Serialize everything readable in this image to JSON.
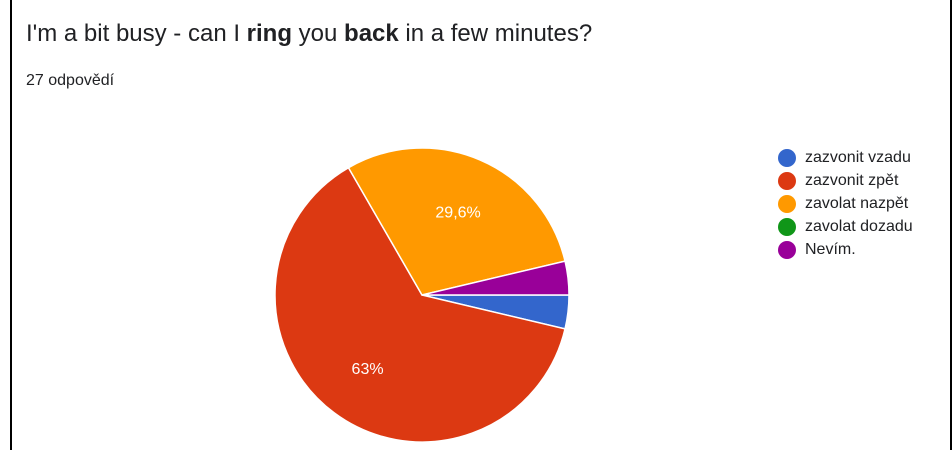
{
  "question": {
    "parts": [
      {
        "text": "I'm a bit busy - can I ",
        "bold": false
      },
      {
        "text": "ring",
        "bold": true
      },
      {
        "text": " you ",
        "bold": false
      },
      {
        "text": "back",
        "bold": true
      },
      {
        "text": " in a few minutes?",
        "bold": false
      }
    ]
  },
  "response_count": "27 odpovědí",
  "chart_data": {
    "type": "pie",
    "title": "I'm a bit busy - can I ring you back in a few minutes?",
    "total_responses": 27,
    "legend_position": "right",
    "slices": [
      {
        "name": "zazvonit vzadu",
        "count": 1,
        "percent": 3.7,
        "label": "",
        "color": "#3366cc"
      },
      {
        "name": "zazvonit zpět",
        "count": 17,
        "percent": 63.0,
        "label": "63%",
        "color": "#dc3912"
      },
      {
        "name": "zavolat nazpět",
        "count": 8,
        "percent": 29.6,
        "label": "29,6%",
        "color": "#ff9900"
      },
      {
        "name": "zavolat dozadu",
        "count": 0,
        "percent": 0.0,
        "label": "",
        "color": "#109618"
      },
      {
        "name": "Nevím.",
        "count": 1,
        "percent": 3.7,
        "label": "",
        "color": "#990099"
      }
    ]
  }
}
